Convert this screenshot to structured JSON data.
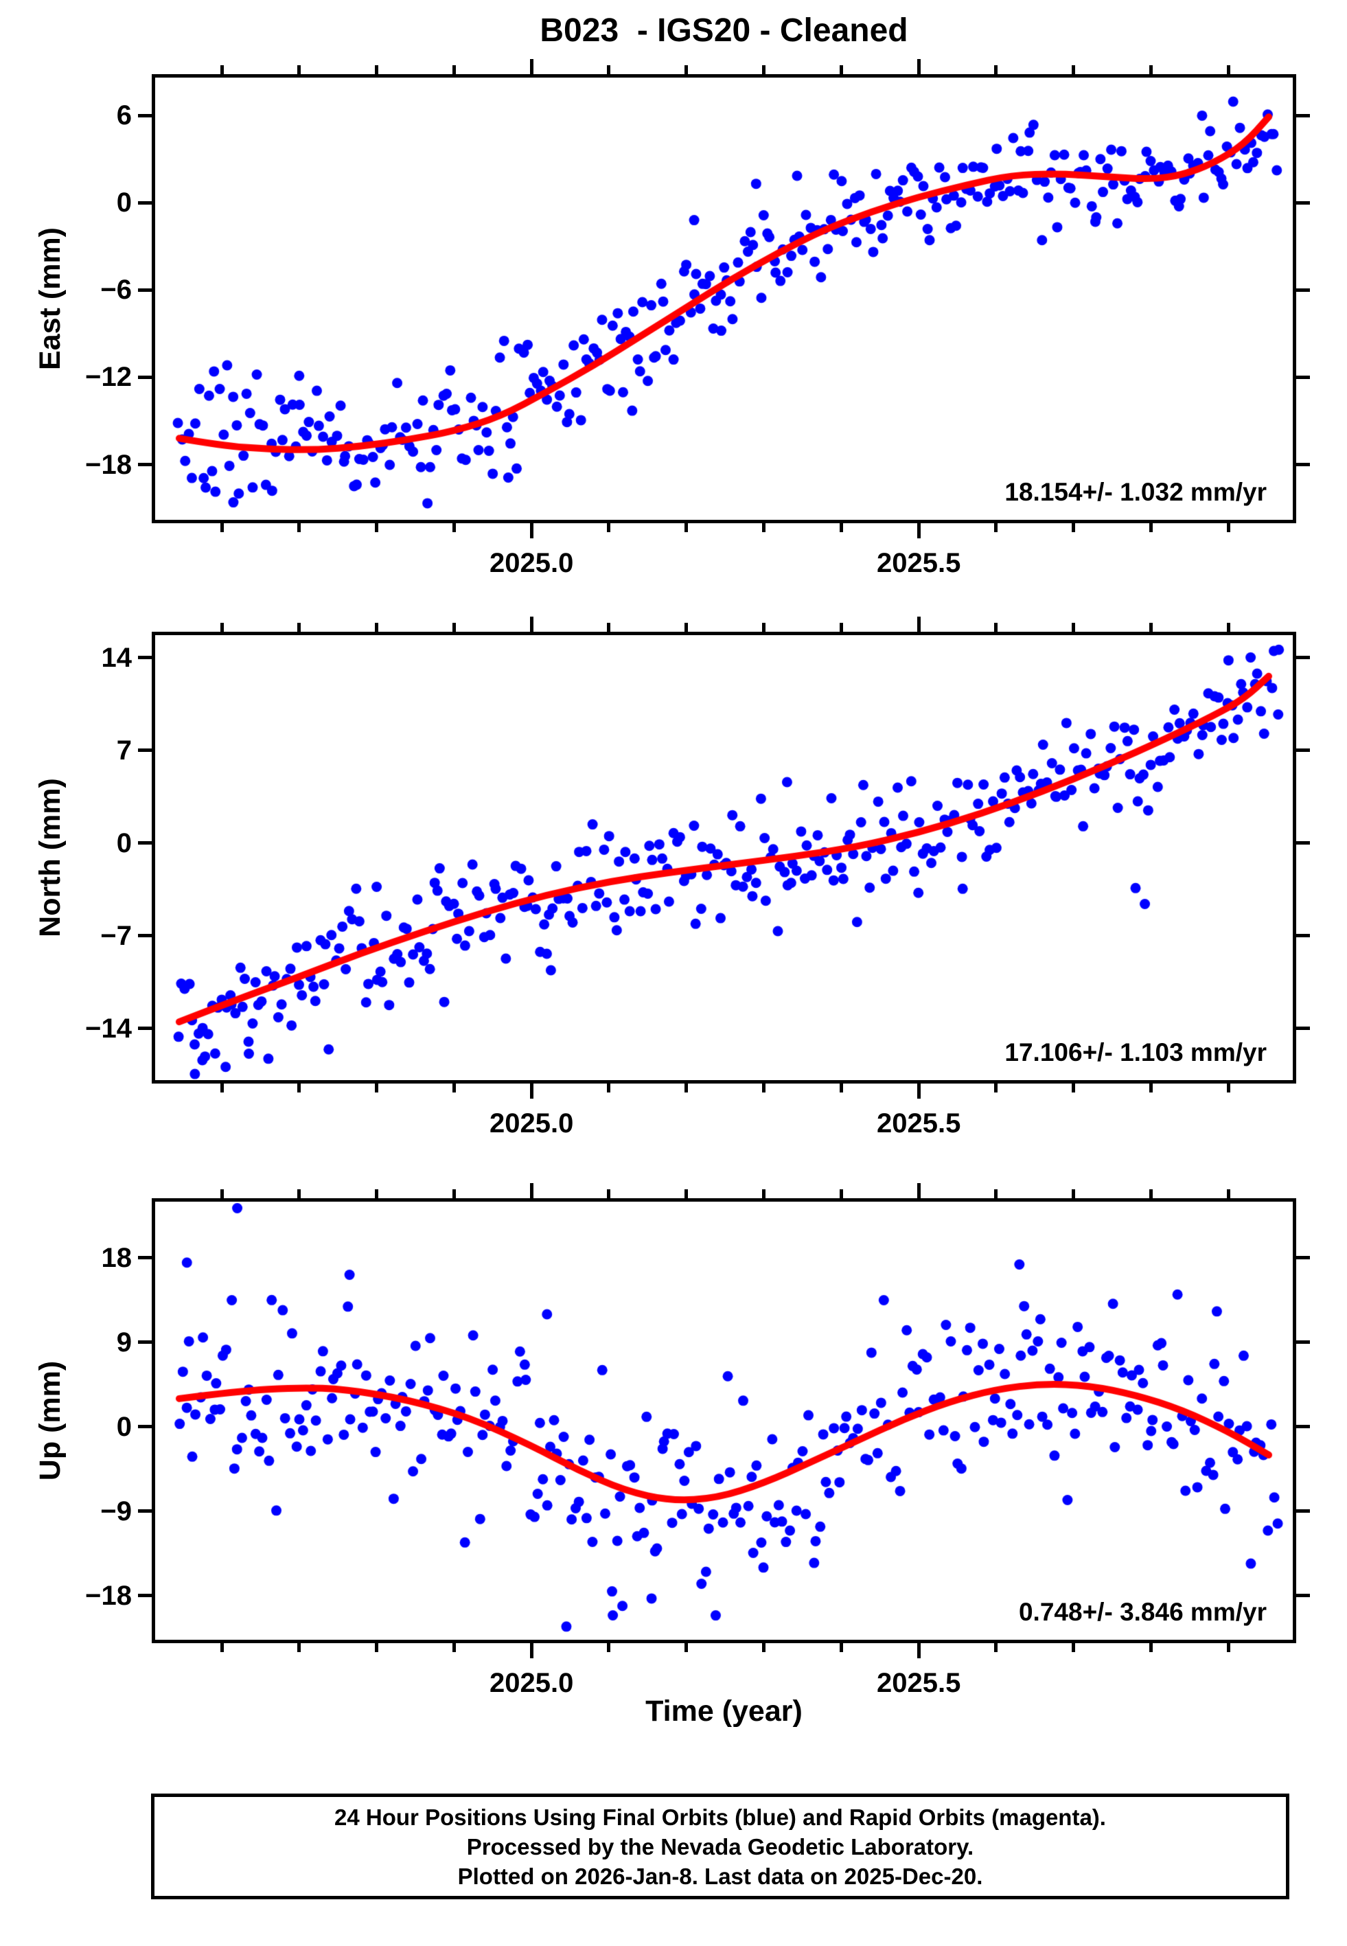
{
  "title": "B023  - IGS20 - Cleaned",
  "colors": {
    "points": "#0000ff",
    "trend": "#ff0000",
    "frame": "#000000",
    "background": "#ffffff"
  },
  "chart_data": {
    "type": "scatter",
    "title": "B023  - IGS20 - Cleaned",
    "xlabel": "Time (year)",
    "x_range": [
      2024.514,
      2025.983
    ],
    "x_major_ticks": [
      {
        "value": 2025.0,
        "label": "2025.0"
      },
      {
        "value": 2025.5,
        "label": "2025.5"
      }
    ],
    "x_minor_ticks": [
      2024.6,
      2024.7,
      2024.8,
      2024.9,
      2025.1,
      2025.2,
      2025.3,
      2025.4,
      2025.6,
      2025.7,
      2025.8,
      2025.9
    ],
    "grid": false,
    "legend": "none",
    "panels": [
      {
        "id": "east",
        "ylabel": "East (mm)",
        "rate_label": "18.154+/- 1.032 mm/yr",
        "y_range": [
          -21.8,
          8.6
        ],
        "y_ticks": [
          {
            "value": 6,
            "label": "6"
          },
          {
            "value": 0,
            "label": "0"
          },
          {
            "value": -6,
            "label": "−6"
          },
          {
            "value": -12,
            "label": "−12"
          },
          {
            "value": -18,
            "label": "−18"
          }
        ],
        "trend": [
          [
            2024.545,
            -16.2
          ],
          [
            2024.6,
            -16.7
          ],
          [
            2024.66,
            -16.95
          ],
          [
            2024.72,
            -17.0
          ],
          [
            2024.78,
            -16.75
          ],
          [
            2024.84,
            -16.3
          ],
          [
            2024.9,
            -15.7
          ],
          [
            2024.96,
            -14.7
          ],
          [
            2025.02,
            -13.0
          ],
          [
            2025.08,
            -11.2
          ],
          [
            2025.14,
            -9.2
          ],
          [
            2025.2,
            -7.2
          ],
          [
            2025.26,
            -5.2
          ],
          [
            2025.32,
            -3.4
          ],
          [
            2025.38,
            -1.8
          ],
          [
            2025.44,
            -0.6
          ],
          [
            2025.5,
            0.4
          ],
          [
            2025.56,
            1.2
          ],
          [
            2025.62,
            1.9
          ],
          [
            2025.68,
            2.0
          ],
          [
            2025.74,
            1.8
          ],
          [
            2025.8,
            1.6
          ],
          [
            2025.84,
            1.9
          ],
          [
            2025.88,
            2.7
          ],
          [
            2025.92,
            4.0
          ],
          [
            2025.952,
            5.9
          ]
        ],
        "scatter": {
          "n": 330,
          "t_start": 2024.545,
          "t_end": 2025.968,
          "seed": 7,
          "sigma": 1.7,
          "sigma_early": 2.35,
          "early_until": 2025.0,
          "outliers": [
            [
              2024.615,
              -20.6
            ],
            [
              2024.665,
              -19.8
            ],
            [
              2024.97,
              -18.9
            ],
            [
              2025.21,
              -1.2
            ],
            [
              2025.29,
              1.3
            ],
            [
              2025.245,
              -8.8
            ],
            [
              2024.59,
              -11.6
            ],
            [
              2024.7,
              -11.9
            ],
            [
              2025.13,
              -14.3
            ]
          ]
        }
      },
      {
        "id": "north",
        "ylabel": "North (mm)",
        "rate_label": "17.106+/- 1.103 mm/yr",
        "y_range": [
          -17.9,
          15.7
        ],
        "y_ticks": [
          {
            "value": 14,
            "label": "14"
          },
          {
            "value": 7,
            "label": "7"
          },
          {
            "value": 0,
            "label": "0"
          },
          {
            "value": -7,
            "label": "−7"
          },
          {
            "value": -14,
            "label": "−14"
          }
        ],
        "trend": [
          [
            2024.545,
            -13.5
          ],
          [
            2024.62,
            -11.8
          ],
          [
            2024.7,
            -10.1
          ],
          [
            2024.78,
            -8.3
          ],
          [
            2024.86,
            -6.7
          ],
          [
            2024.94,
            -5.2
          ],
          [
            2025.02,
            -3.9
          ],
          [
            2025.1,
            -2.9
          ],
          [
            2025.18,
            -2.2
          ],
          [
            2025.26,
            -1.6
          ],
          [
            2025.34,
            -1.0
          ],
          [
            2025.42,
            -0.3
          ],
          [
            2025.5,
            0.8
          ],
          [
            2025.58,
            2.2
          ],
          [
            2025.66,
            3.9
          ],
          [
            2025.74,
            5.8
          ],
          [
            2025.82,
            7.9
          ],
          [
            2025.88,
            9.6
          ],
          [
            2025.92,
            10.9
          ],
          [
            2025.952,
            12.6
          ]
        ],
        "scatter": {
          "n": 330,
          "t_start": 2024.545,
          "t_end": 2025.968,
          "seed": 12,
          "sigma": 2.0,
          "sigma_early": 2.6,
          "early_until": 2024.95,
          "outliers": [
            [
              2024.575,
              -16.4
            ],
            [
              2024.605,
              -16.9
            ],
            [
              2024.635,
              -15.9
            ],
            [
              2024.565,
              -15.2
            ],
            [
              2025.025,
              -9.6
            ],
            [
              2025.33,
              4.6
            ],
            [
              2025.78,
              -3.4
            ],
            [
              2025.792,
              -4.6
            ],
            [
              2025.9,
              13.8
            ],
            [
              2024.8,
              -3.3
            ],
            [
              2024.875,
              -3.0
            ],
            [
              2025.965,
              14.6
            ]
          ]
        }
      },
      {
        "id": "up",
        "ylabel": "Up (mm)",
        "rate_label": "0.748+/- 3.846 mm/yr",
        "y_range": [
          -22.7,
          24.0
        ],
        "y_ticks": [
          {
            "value": 18,
            "label": "18"
          },
          {
            "value": 9,
            "label": "9"
          },
          {
            "value": 0,
            "label": "0"
          },
          {
            "value": -9,
            "label": "−9"
          },
          {
            "value": -18,
            "label": "−18"
          }
        ],
        "trend": [
          [
            2024.545,
            3.0
          ],
          [
            2024.62,
            3.8
          ],
          [
            2024.7,
            4.2
          ],
          [
            2024.76,
            4.0
          ],
          [
            2024.84,
            2.9
          ],
          [
            2024.92,
            1.0
          ],
          [
            2025.0,
            -2.0
          ],
          [
            2025.06,
            -4.6
          ],
          [
            2025.12,
            -6.8
          ],
          [
            2025.18,
            -7.9
          ],
          [
            2025.24,
            -7.6
          ],
          [
            2025.3,
            -6.0
          ],
          [
            2025.36,
            -3.8
          ],
          [
            2025.42,
            -1.5
          ],
          [
            2025.48,
            0.8
          ],
          [
            2025.54,
            2.7
          ],
          [
            2025.6,
            4.0
          ],
          [
            2025.66,
            4.6
          ],
          [
            2025.72,
            4.4
          ],
          [
            2025.78,
            3.4
          ],
          [
            2025.84,
            1.8
          ],
          [
            2025.9,
            -0.5
          ],
          [
            2025.952,
            -3.0
          ]
        ],
        "scatter": {
          "n": 320,
          "t_start": 2024.545,
          "t_end": 2025.968,
          "seed": 5,
          "sigma": 5.2,
          "sigma_early": 5.2,
          "early_until": 2024.545,
          "outliers": [
            [
              2024.62,
              23.3
            ],
            [
              2024.555,
              17.5
            ],
            [
              2025.045,
              -21.3
            ],
            [
              2025.105,
              -20.1
            ],
            [
              2025.155,
              -18.3
            ],
            [
              2025.63,
              17.3
            ],
            [
              2024.765,
              16.2
            ],
            [
              2025.885,
              12.3
            ],
            [
              2025.02,
              12.0
            ]
          ]
        }
      }
    ]
  },
  "footer": {
    "lines": [
      "24 Hour Positions Using Final Orbits (blue) and Rapid Orbits (magenta).",
      "Processed by the Nevada Geodetic Laboratory.",
      "Plotted on 2026-Jan-8. Last data on 2025-Dec-20."
    ]
  }
}
